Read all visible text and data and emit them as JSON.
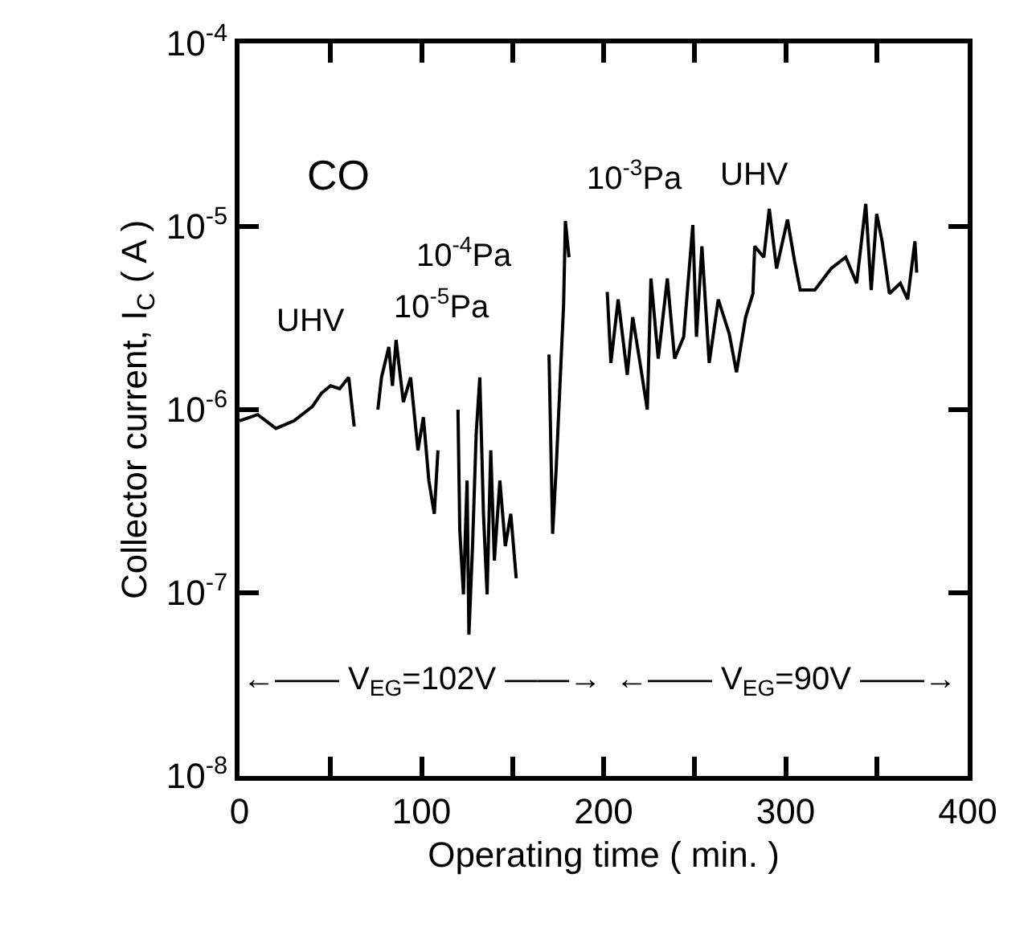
{
  "chart_data": {
    "type": "line",
    "xlabel": "Operating time ( min. )",
    "ylabel": "Collector current, I$_{C}$ ( A )",
    "log": "y",
    "xlim": [
      0,
      400
    ],
    "xticks": [
      0,
      {
        "value": 50,
        "label": null
      },
      100,
      {
        "value": 150,
        "label": null
      },
      200,
      {
        "value": 250,
        "label": null
      },
      300,
      {
        "value": 350,
        "label": null
      },
      400
    ],
    "ylim": [
      1e-08,
      0.0001
    ],
    "yticks": [
      {
        "value": 1e-08,
        "label": "10$^{-8}$"
      },
      {
        "value": 1e-07,
        "label": "10$^{-7}$"
      },
      {
        "value": 1e-06,
        "label": "10$^{-6}$"
      },
      {
        "value": 1e-05,
        "label": "10$^{-5}$"
      },
      {
        "value": 0.0001,
        "label": "10$^{-4}$"
      }
    ],
    "grid": false,
    "marker": "none",
    "line_style": "solid",
    "series": [
      {
        "color": "#000000",
        "x": [
          0,
          10,
          20,
          30,
          40,
          45,
          50,
          55,
          60,
          63,
          null,
          76,
          78,
          82,
          84,
          86,
          90,
          94,
          98,
          101,
          104,
          107,
          109,
          null,
          120,
          121,
          123,
          125,
          126,
          128,
          130,
          132,
          134,
          136,
          138,
          140,
          143,
          146,
          149,
          152,
          null,
          170,
          172,
          174,
          176,
          178,
          179,
          181,
          null,
          202,
          204,
          208,
          213,
          216,
          220,
          224,
          226,
          230,
          235,
          239,
          244,
          249,
          251,
          254,
          258,
          263,
          269,
          273,
          278,
          282,
          283,
          288,
          291,
          295,
          301,
          305,
          308,
          316,
          325,
          333,
          339,
          344,
          347,
          350,
          353,
          357,
          363,
          367,
          371,
          372
        ],
        "values": [
          8.7e-07,
          9.4e-07,
          7.9e-07,
          8.7e-07,
          1.04e-06,
          1.23e-06,
          1.35e-06,
          1.3e-06,
          1.5e-06,
          8.1e-07,
          null,
          1e-06,
          1.5e-06,
          2.2e-06,
          1.35e-06,
          2.4e-06,
          1.1e-06,
          1.5e-06,
          6e-07,
          9.1e-07,
          4.1e-07,
          2.7e-07,
          6e-07,
          null,
          1e-06,
          2.2e-07,
          9.8e-08,
          4.1e-07,
          5.9e-08,
          1.8e-07,
          7.4e-07,
          1.5e-06,
          2.7e-07,
          9.8e-08,
          6e-07,
          1.5e-07,
          4.1e-07,
          1.8e-07,
          2.7e-07,
          1.2e-07,
          null,
          2e-06,
          2.1e-07,
          4.9e-07,
          1.35e-06,
          3.7e-06,
          1.07e-05,
          6.8e-06,
          null,
          4.4e-06,
          1.8e-06,
          4e-06,
          1.55e-06,
          3.2e-06,
          1.8e-06,
          1e-06,
          5.2e-06,
          1.9e-06,
          5.2e-06,
          1.9e-06,
          2.5e-06,
          1.02e-05,
          2.5e-06,
          7.8e-06,
          1.8e-06,
          4e-06,
          2.6e-06,
          1.6e-06,
          3.2e-06,
          4.3e-06,
          7.8e-06,
          6.8e-06,
          1.25e-05,
          5.9e-06,
          1.09e-05,
          6.4e-06,
          4.5e-06,
          4.5e-06,
          5.9e-06,
          6.8e-06,
          4.9e-06,
          1.33e-05,
          4.5e-06,
          1.17e-05,
          8.3e-06,
          4.3e-06,
          4.9e-06,
          4e-06,
          8.3e-06,
          5.6e-06
        ]
      }
    ],
    "annotations": [
      "CO",
      "UHV",
      "10$^{-5}$Pa",
      "10$^{-4}$Pa",
      "10$^{-3}$Pa",
      "UHV",
      "←—— V$_{EG}$=102V ——→",
      "←—— V$_{EG}$=90V ——→"
    ]
  }
}
